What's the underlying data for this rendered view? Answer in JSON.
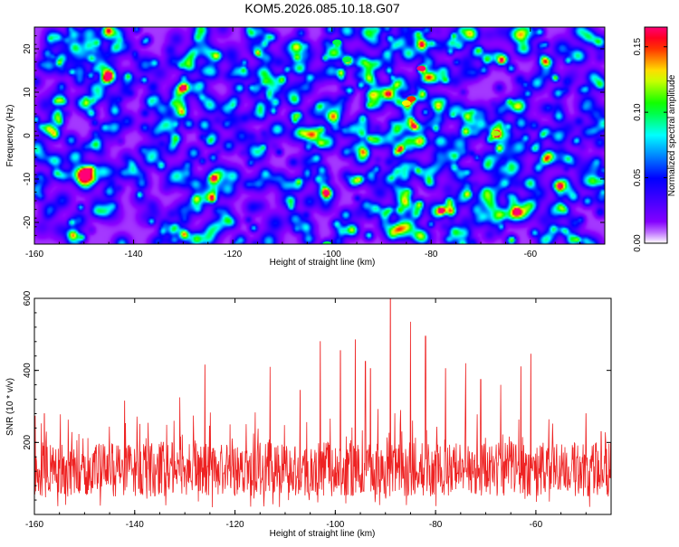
{
  "title": "KOM5.2026.085.10.18.G07",
  "chart_data": [
    {
      "type": "heatmap",
      "title": "KOM5.2026.085.10.18.G07",
      "xlabel": "Height of straight line (km)",
      "ylabel": "Frequency (Hz)",
      "xlim": [
        -160,
        -45
      ],
      "ylim": [
        -25,
        25
      ],
      "x_ticks": [
        -160,
        -140,
        -120,
        -100,
        -80,
        -60
      ],
      "y_ticks": [
        -20,
        -10,
        0,
        10,
        20
      ],
      "colorbar": {
        "label": "Normalized spectral amplitude",
        "range": [
          0.0,
          0.165
        ],
        "ticks": [
          0.0,
          0.05,
          0.1,
          0.15
        ],
        "tick_labels": [
          "0.00",
          "0.05",
          "0.10",
          "0.15"
        ],
        "colors": [
          "#ffffff",
          "#8a00ff",
          "#0000ff",
          "#00ffff",
          "#00ff00",
          "#ffff00",
          "#ff0000",
          "#ff0077"
        ]
      },
      "peaks": [
        {
          "x": -82,
          "y": 15.5,
          "amp": 0.165
        },
        {
          "x": -84,
          "y": 8.5,
          "amp": 0.15
        },
        {
          "x": -85,
          "y": 7.5,
          "amp": 0.13
        },
        {
          "x": -67,
          "y": 0.5,
          "amp": 0.12
        },
        {
          "x": -99,
          "y": 21.5,
          "amp": 0.1
        },
        {
          "x": -97,
          "y": 17.5,
          "amp": 0.1
        },
        {
          "x": -101,
          "y": -25,
          "amp": 0.1
        }
      ]
    },
    {
      "type": "line",
      "xlabel": "Height of straight line (km)",
      "ylabel": "SNR (10 * v/v)",
      "xlim": [
        -160,
        -45
      ],
      "ylim": [
        0,
        600
      ],
      "x_ticks": [
        -160,
        -140,
        -120,
        -100,
        -80,
        -60
      ],
      "y_ticks": [
        200,
        400,
        600
      ],
      "color": "#ee2222",
      "baseline_range": [
        50,
        200
      ],
      "spikes": [
        {
          "x": -126,
          "y": 415
        },
        {
          "x": -113,
          "y": 410
        },
        {
          "x": -103,
          "y": 480
        },
        {
          "x": -99,
          "y": 455
        },
        {
          "x": -96,
          "y": 485
        },
        {
          "x": -94,
          "y": 425
        },
        {
          "x": -93,
          "y": 405
        },
        {
          "x": -89,
          "y": 600
        },
        {
          "x": -85,
          "y": 535
        },
        {
          "x": -82,
          "y": 495
        },
        {
          "x": -78,
          "y": 405
        },
        {
          "x": -74,
          "y": 420
        },
        {
          "x": -61,
          "y": 445
        },
        {
          "x": -63,
          "y": 410
        },
        {
          "x": -142,
          "y": 315
        },
        {
          "x": -158,
          "y": 280
        },
        {
          "x": -131,
          "y": 325
        },
        {
          "x": -107,
          "y": 345
        },
        {
          "x": -71,
          "y": 375
        },
        {
          "x": -67,
          "y": 360
        },
        {
          "x": -50,
          "y": 280
        },
        {
          "x": -47,
          "y": 230
        }
      ]
    }
  ]
}
